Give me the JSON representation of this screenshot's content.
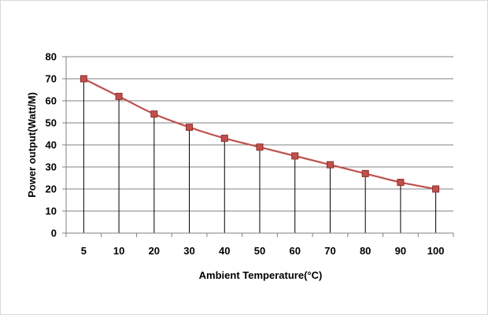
{
  "chart_data": {
    "type": "line",
    "title": "",
    "xlabel": "Ambient Temperature(°C)",
    "ylabel": "Power output(Watt/M)",
    "categories": [
      "5",
      "10",
      "20",
      "30",
      "40",
      "50",
      "60",
      "70",
      "80",
      "90",
      "100"
    ],
    "series": [
      {
        "values": [
          70,
          62,
          54,
          48,
          43,
          39,
          35,
          31,
          27,
          23,
          20
        ]
      }
    ],
    "ylim": [
      0,
      80
    ],
    "yticks": [
      0,
      10,
      20,
      30,
      40,
      50,
      60,
      70,
      80
    ],
    "grid": "horizontal",
    "drop_lines": true,
    "legend": "none",
    "colors": {
      "line": "#c0504d",
      "marker_fill": "#c0504d",
      "marker_stroke": "#8b2d2a",
      "gridline": "#808080",
      "drop_line": "#000000",
      "axis": "#808080"
    }
  }
}
